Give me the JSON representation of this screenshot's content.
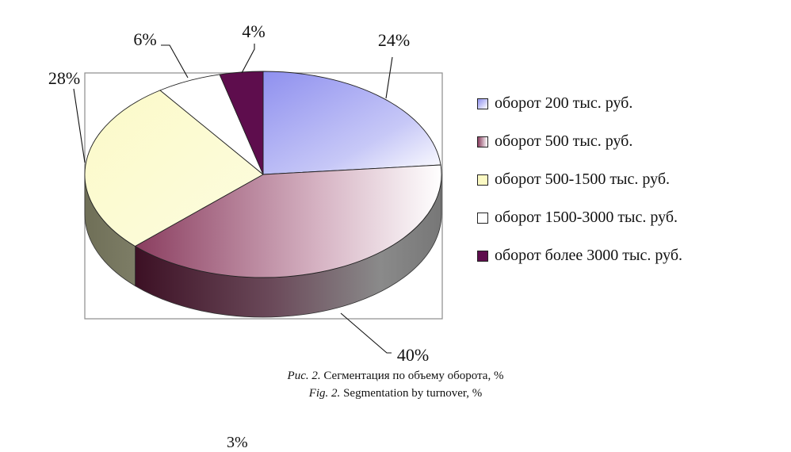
{
  "chart_data": {
    "type": "pie",
    "title": "",
    "categories": [
      "оборот 200 тыс. руб.",
      "оборот 500 тыс. руб.",
      "оборот 500-1500 тыс. руб.",
      "оборот 1500-3000 тыс. руб.",
      "оборот более 3000 тыс. руб."
    ],
    "values": [
      24,
      40,
      28,
      6,
      4
    ],
    "labels": [
      "24%",
      "40%",
      "28%",
      "6%",
      "4%"
    ],
    "colors": [
      "#9b9cf2",
      "#8a3d5f",
      "#fbf9c3",
      "#ffffff",
      "#5e0d4d"
    ],
    "legend_position": "right",
    "three_d": true
  },
  "legend": [
    {
      "label": "оборот 200 тыс. руб.",
      "color": "#9b9cf2"
    },
    {
      "label": "оборот 500 тыс. руб.",
      "color": "#8a3d5f"
    },
    {
      "label": "оборот 500-1500 тыс. руб.",
      "color": "#fbf9c3"
    },
    {
      "label": "оборот 1500-3000 тыс. руб.",
      "color": "#ffffff"
    },
    {
      "label": "оборот более 3000 тыс. руб.",
      "color": "#5e0d4d"
    }
  ],
  "caption": {
    "ru_prefix": "Рис. 2.",
    "ru_text": "Сегментация по объему оборота, %",
    "en_prefix": "Fig. 2.",
    "en_text": "Segmentation by turnover, %"
  },
  "page_cut_text": "3%"
}
